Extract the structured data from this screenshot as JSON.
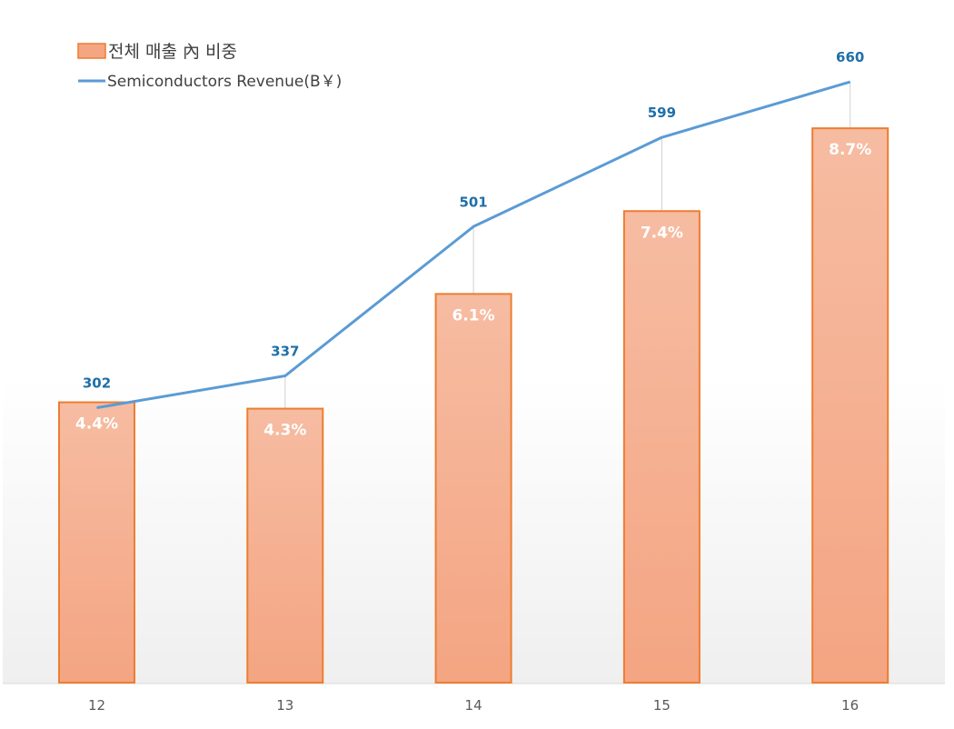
{
  "chart_data": {
    "type": "bar+line",
    "categories": [
      "12",
      "13",
      "14",
      "15",
      "16"
    ],
    "series": [
      {
        "name": "전체 매출 內 비중",
        "type": "bar",
        "values": [
          4.4,
          4.3,
          6.1,
          7.4,
          8.7
        ],
        "labels": [
          "4.4%",
          "4.3%",
          "6.1%",
          "7.4%",
          "8.7%"
        ],
        "color": "#f4a582",
        "border": "#ed7d31",
        "axis_range": [
          0,
          10
        ]
      },
      {
        "name": "Semiconductors Revenue(B￥)",
        "type": "line",
        "values": [
          302,
          337,
          501,
          599,
          660
        ],
        "labels": [
          "302",
          "337",
          "501",
          "599",
          "660"
        ],
        "color": "#5b9bd5",
        "label_color": "#1f6fa8",
        "axis_range": [
          0,
          700
        ]
      }
    ],
    "legend": "top-left",
    "grid": false,
    "drop_lines": true
  }
}
